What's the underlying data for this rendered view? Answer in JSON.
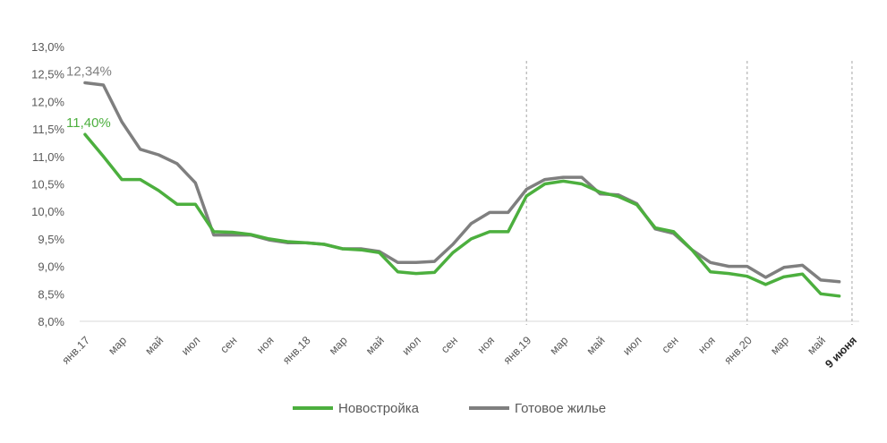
{
  "chart_data": {
    "type": "line",
    "title": "",
    "xlabel": "",
    "ylabel": "",
    "ylim": [
      8.0,
      13.0
    ],
    "yticks": [
      "13,0%",
      "12,5%",
      "12,0%",
      "11,5%",
      "11,0%",
      "10,5%",
      "10,0%",
      "9,5%",
      "9,0%",
      "8,5%",
      "8,0%"
    ],
    "x_labels": [
      {
        "i": 0,
        "label": "янв.17"
      },
      {
        "i": 2,
        "label": "мар"
      },
      {
        "i": 4,
        "label": "май"
      },
      {
        "i": 6,
        "label": "июл"
      },
      {
        "i": 8,
        "label": "сен"
      },
      {
        "i": 10,
        "label": "ноя"
      },
      {
        "i": 12,
        "label": "янв.18"
      },
      {
        "i": 14,
        "label": "мар"
      },
      {
        "i": 16,
        "label": "май"
      },
      {
        "i": 18,
        "label": "июл"
      },
      {
        "i": 20,
        "label": "сен"
      },
      {
        "i": 22,
        "label": "ноя"
      },
      {
        "i": 24,
        "label": "янв.19"
      },
      {
        "i": 26,
        "label": "мар"
      },
      {
        "i": 28,
        "label": "май"
      },
      {
        "i": 30,
        "label": "июл"
      },
      {
        "i": 32,
        "label": "сен"
      },
      {
        "i": 34,
        "label": "ноя"
      },
      {
        "i": 36,
        "label": "янв.20"
      },
      {
        "i": 38,
        "label": "мар"
      },
      {
        "i": 40,
        "label": "май"
      },
      {
        "i": 41.7,
        "label": "9 июня",
        "bold": true
      }
    ],
    "vlines": [
      24,
      36,
      41.7
    ],
    "series": [
      {
        "name": "Новостройка",
        "color": "#4caf3e",
        "values": [
          11.4,
          11.0,
          10.58,
          10.58,
          10.38,
          10.13,
          10.13,
          9.63,
          9.62,
          9.58,
          9.5,
          9.45,
          9.43,
          9.4,
          9.32,
          9.3,
          9.25,
          8.9,
          8.87,
          8.89,
          9.25,
          9.5,
          9.63,
          9.63,
          10.28,
          10.5,
          10.55,
          10.5,
          10.35,
          10.27,
          10.12,
          9.7,
          9.63,
          9.3,
          8.9,
          8.87,
          8.82,
          8.67,
          8.81,
          8.86,
          8.5,
          8.46
        ]
      },
      {
        "name": "Готовое жилье",
        "color": "#7f7f7f",
        "values": [
          12.34,
          12.3,
          11.63,
          11.13,
          11.03,
          10.87,
          10.52,
          9.57,
          9.57,
          9.57,
          9.48,
          9.43,
          9.43,
          9.4,
          9.32,
          9.32,
          9.27,
          9.07,
          9.07,
          9.09,
          9.4,
          9.78,
          9.98,
          9.98,
          10.4,
          10.58,
          10.62,
          10.62,
          10.32,
          10.3,
          10.14,
          9.68,
          9.6,
          9.3,
          9.07,
          9.0,
          9.0,
          8.8,
          8.98,
          9.02,
          8.75,
          8.72
        ]
      }
    ],
    "annotations": [
      {
        "series": 1,
        "i": 0,
        "text": "12,34%",
        "color": "#7f7f7f"
      },
      {
        "series": 0,
        "i": 0,
        "text": "11,40%",
        "color": "#4caf3e"
      }
    ],
    "legend": {
      "placement": "bottom",
      "entries": [
        "Новостройка",
        "Готовое жилье"
      ]
    }
  }
}
